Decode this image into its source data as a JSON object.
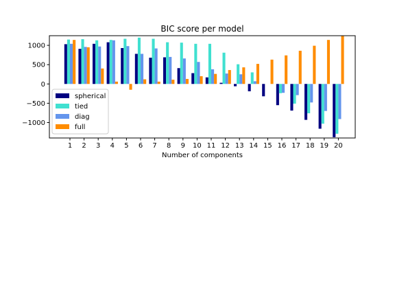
{
  "chart_data": {
    "type": "bar",
    "title": "BIC score per model",
    "xlabel": "Number of components",
    "ylabel": "",
    "categories": [
      "1",
      "2",
      "3",
      "4",
      "5",
      "6",
      "7",
      "8",
      "9",
      "10",
      "11",
      "12",
      "13",
      "14",
      "15",
      "16",
      "17",
      "18",
      "19",
      "20"
    ],
    "y_ticks": [
      -1000,
      -500,
      0,
      500,
      1000
    ],
    "y_tick_labels": [
      "−1000",
      "−500",
      "0",
      "500",
      "1000"
    ],
    "ylim": [
      -1400,
      1250
    ],
    "grid": false,
    "legend_position": "lower-left",
    "series": [
      {
        "name": "spherical",
        "color": "#000080",
        "values": [
          1030,
          910,
          1040,
          1080,
          930,
          780,
          680,
          690,
          410,
          280,
          170,
          30,
          -60,
          -190,
          -320,
          -550,
          -690,
          -930,
          -1160,
          -1380
        ]
      },
      {
        "name": "tied",
        "color": "#40e0d0",
        "values": [
          1150,
          1160,
          1130,
          1140,
          1170,
          1200,
          1170,
          1080,
          1070,
          1040,
          1040,
          810,
          510,
          300,
          0,
          -240,
          -510,
          -760,
          -1030,
          -1290
        ]
      },
      {
        "name": "diag",
        "color": "#6495ed",
        "values": [
          1040,
          960,
          970,
          1130,
          980,
          780,
          920,
          700,
          660,
          570,
          380,
          270,
          250,
          70,
          0,
          -230,
          -290,
          -480,
          -700,
          -910
        ]
      },
      {
        "name": "full",
        "color": "#ff8c00",
        "values": [
          1140,
          950,
          400,
          60,
          -150,
          120,
          60,
          110,
          130,
          200,
          260,
          360,
          430,
          520,
          630,
          740,
          860,
          990,
          1140,
          1240
        ]
      }
    ]
  }
}
